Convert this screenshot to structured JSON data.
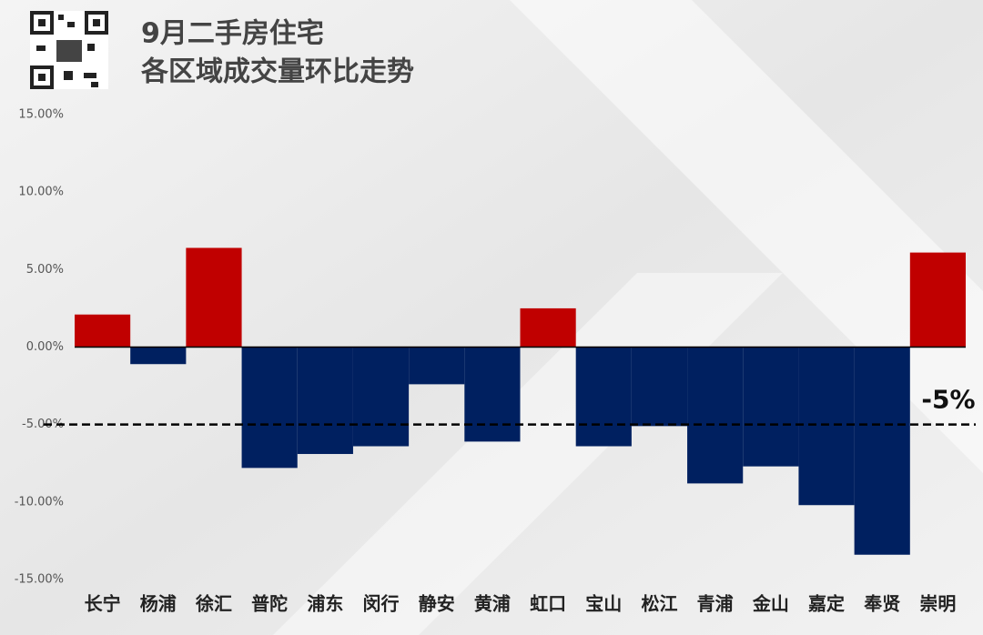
{
  "chart_data": {
    "type": "bar",
    "title": "9月二手房住宅",
    "subtitle": "各区域成交量环比走势",
    "categories": [
      "长宁",
      "杨浦",
      "徐汇",
      "普陀",
      "浦东",
      "闵行",
      "静安",
      "黄浦",
      "虹口",
      "宝山",
      "松江",
      "青浦",
      "金山",
      "嘉定",
      "奉贤",
      "崇明"
    ],
    "values": [
      2.1,
      -1.1,
      6.4,
      -7.8,
      -6.9,
      -6.4,
      -2.4,
      -6.1,
      2.5,
      -6.4,
      -5.1,
      -8.8,
      -7.7,
      -10.2,
      -13.4,
      6.1
    ],
    "positive_color": "#c00000",
    "negative_color": "#002060",
    "ylim": [
      -15,
      15
    ],
    "yticks": [
      {
        "value": -15,
        "label": "-15.00%"
      },
      {
        "value": -10,
        "label": "-10.00%"
      },
      {
        "value": -5,
        "label": "-5.00%"
      },
      {
        "value": 0,
        "label": "0.00%"
      },
      {
        "value": 5,
        "label": "5.00%"
      },
      {
        "value": 10,
        "label": "10.00%"
      },
      {
        "value": 15,
        "label": "15.00%"
      }
    ],
    "reference_line": {
      "value": -5,
      "label": "-5%"
    }
  }
}
